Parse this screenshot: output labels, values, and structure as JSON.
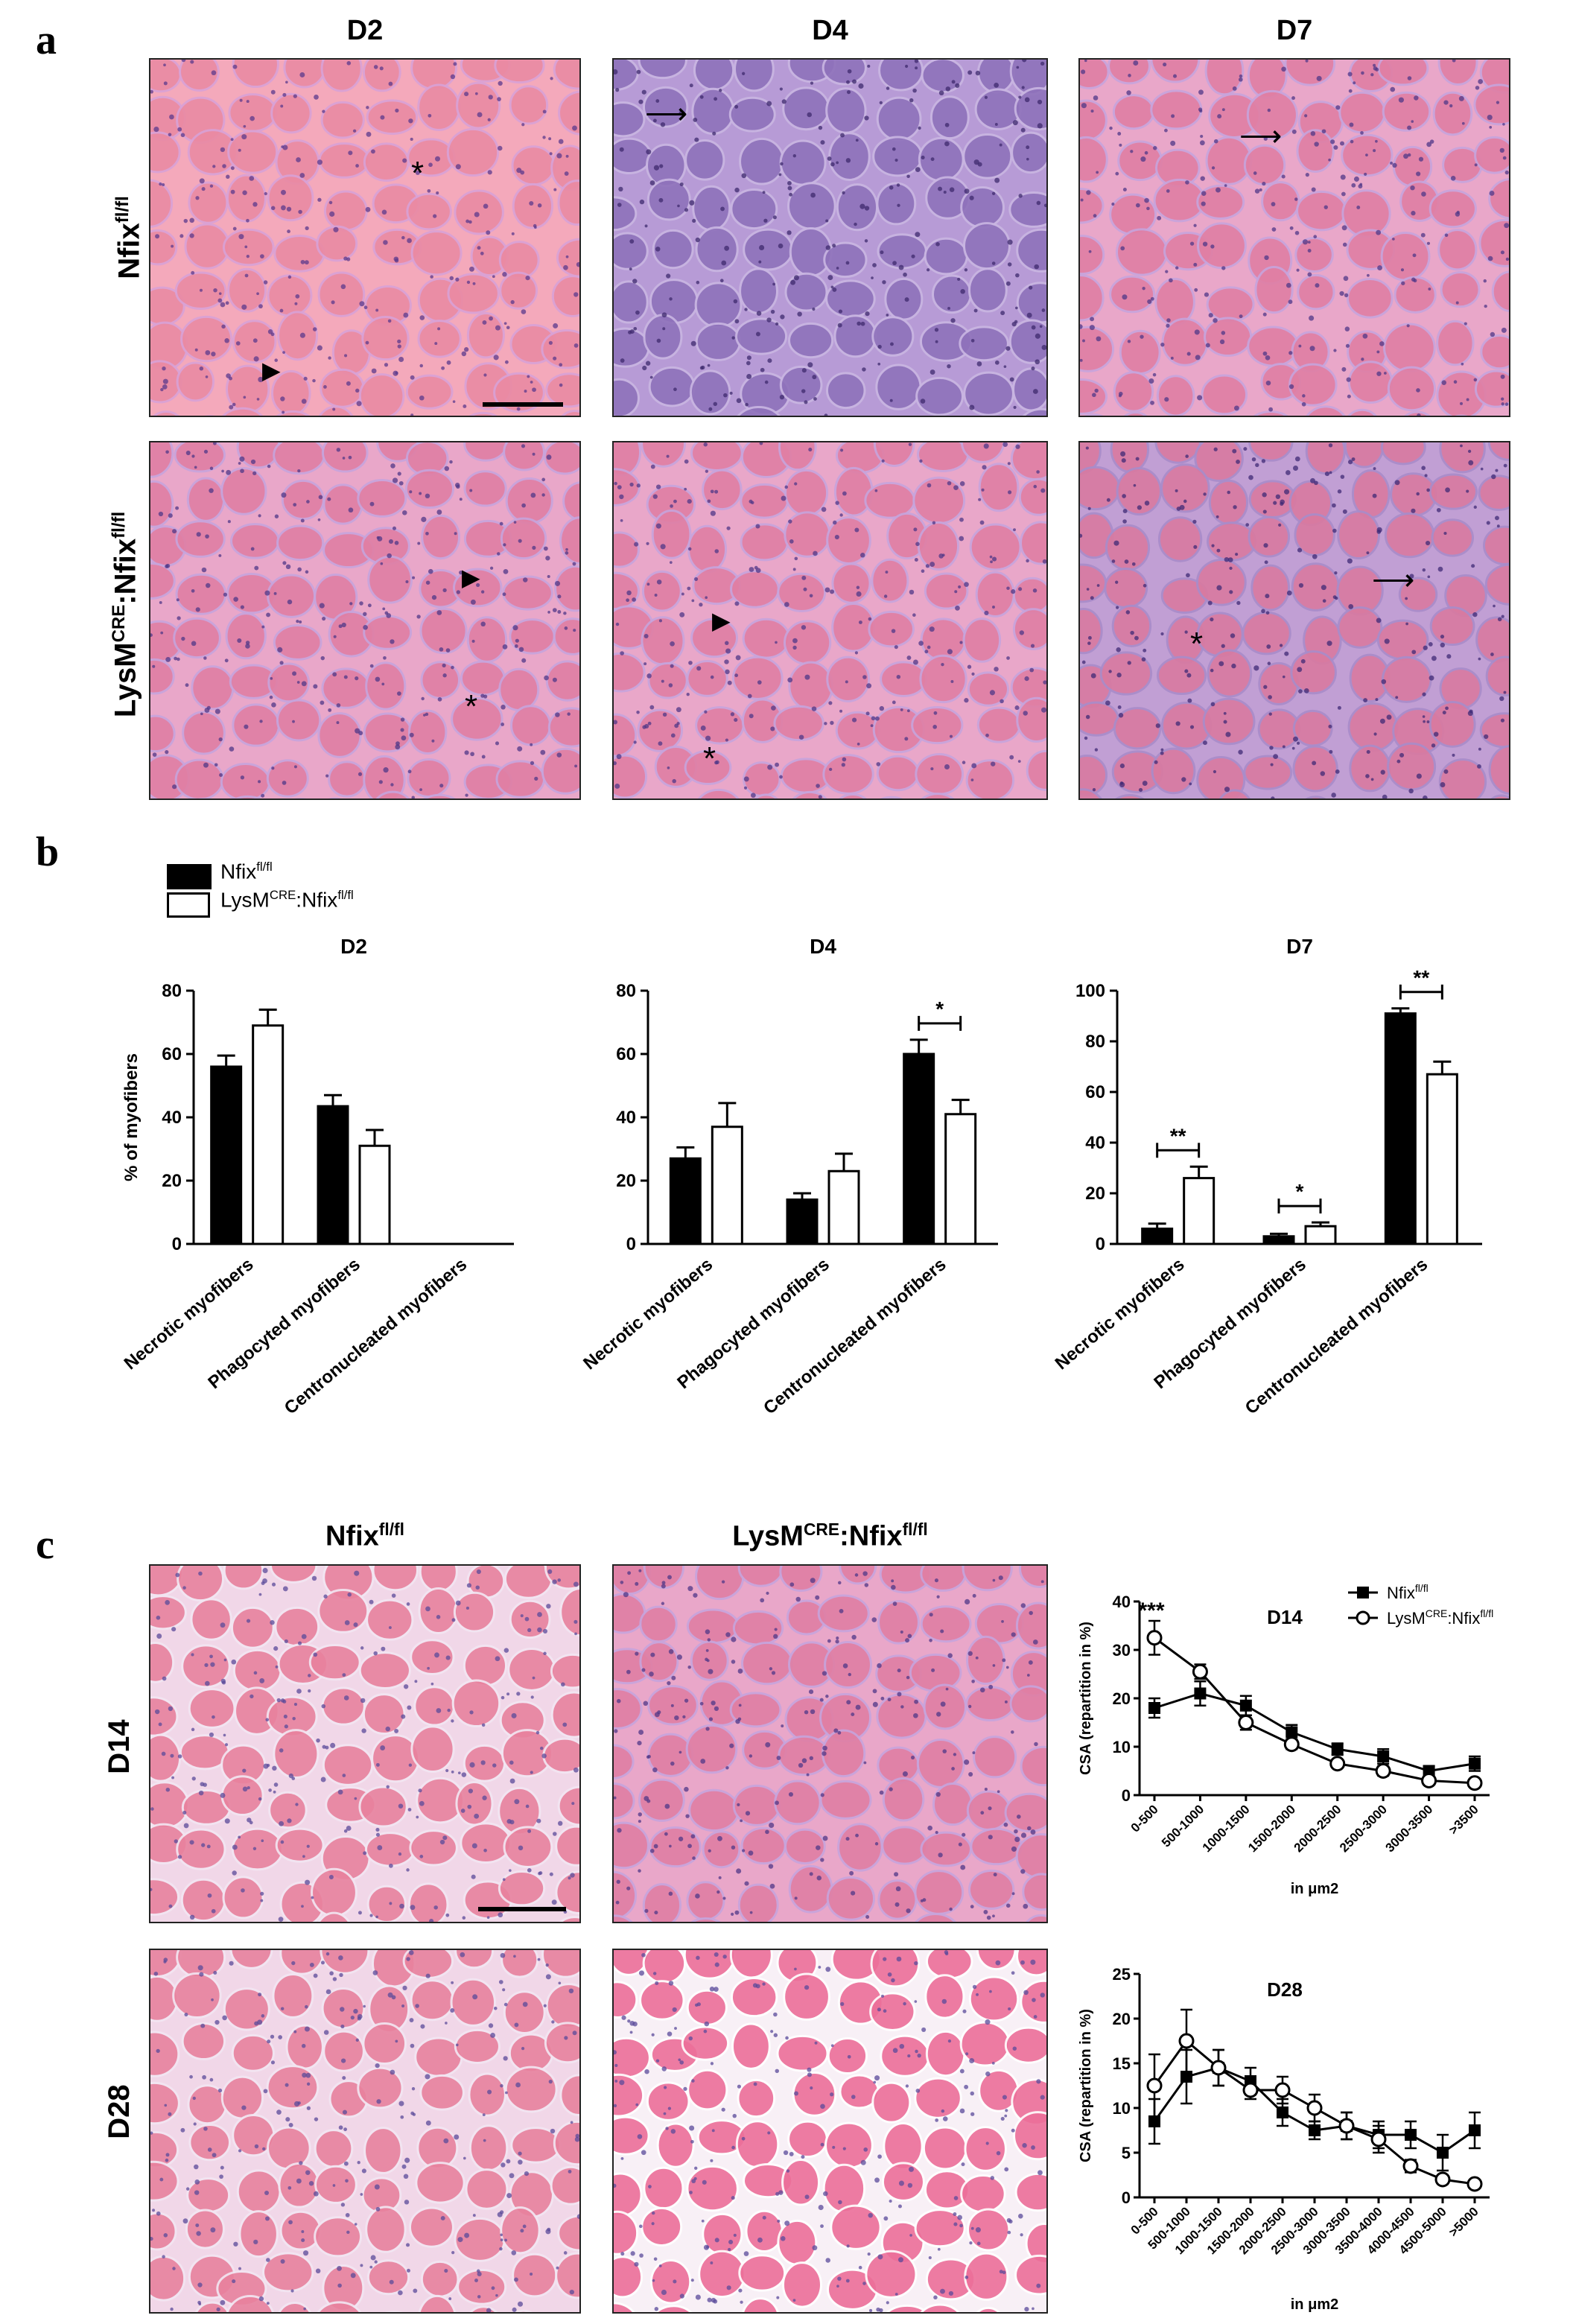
{
  "panel_labels": {
    "a": "a",
    "b": "b",
    "c": "c"
  },
  "panel_a": {
    "columns": [
      "D2",
      "D4",
      "D7"
    ],
    "rows": [
      {
        "base": "Nfix",
        "sup": "fl/fl",
        "prefix": "",
        "prefix_sup": ""
      },
      {
        "base": "Nfix",
        "sup": "fl/fl",
        "prefix": "LysM",
        "prefix_sup": "CRE"
      }
    ],
    "marks": {
      "asterisk": "*",
      "arrowhead": "▶",
      "arrow": "⟶"
    }
  },
  "panel_b": {
    "legend": [
      {
        "base": "Nfix",
        "sup": "fl/fl",
        "prefix": "",
        "prefix_sup": "",
        "fill": "#000000"
      },
      {
        "base": "Nfix",
        "sup": "fl/fl",
        "prefix": "LysM",
        "prefix_sup": "CRE",
        "fill": "#ffffff"
      }
    ],
    "ylabel": "% of myofibers"
  },
  "panel_c": {
    "col_headers": [
      {
        "base": "Nfix",
        "sup": "fl/fl",
        "prefix": "",
        "prefix_sup": ""
      },
      {
        "base": "Nfix",
        "sup": "fl/fl",
        "prefix": "LysM",
        "prefix_sup": "CRE"
      }
    ],
    "row_labels": [
      "D14",
      "D28"
    ]
  },
  "colors": {
    "he_pink": "#e8899f",
    "he_purple": "#8a6fb5",
    "black": "#000000"
  },
  "chart_data": [
    {
      "type": "bar",
      "title": "D2",
      "categories": [
        "Necrotic myofibers",
        "Phagocyted myofibers",
        "Centronucleated myofibers"
      ],
      "series": [
        {
          "name": "Nfixfl/fl",
          "values": [
            56,
            43.5,
            0
          ],
          "errors": [
            3.5,
            3.5,
            0
          ]
        },
        {
          "name": "LysMCRE:Nfixfl/fl",
          "values": [
            69,
            31,
            0
          ],
          "errors": [
            5,
            5,
            0
          ]
        }
      ],
      "ylabel": "% of myofibers",
      "ylim": [
        0,
        80
      ],
      "yticks": [
        0,
        20,
        40,
        60,
        80
      ],
      "significance": []
    },
    {
      "type": "bar",
      "title": "D4",
      "categories": [
        "Necrotic myofibers",
        "Phagocyted myofibers",
        "Centronucleated myofibers"
      ],
      "series": [
        {
          "name": "Nfixfl/fl",
          "values": [
            27,
            14,
            60
          ],
          "errors": [
            3.5,
            2,
            4.5
          ]
        },
        {
          "name": "LysMCRE:Nfixfl/fl",
          "values": [
            37,
            23,
            41
          ],
          "errors": [
            7.5,
            5.5,
            4.5
          ]
        }
      ],
      "ylabel": "",
      "ylim": [
        0,
        80
      ],
      "yticks": [
        0,
        20,
        40,
        60,
        80
      ],
      "significance": [
        {
          "category": 2,
          "label": "*"
        }
      ]
    },
    {
      "type": "bar",
      "title": "D7",
      "categories": [
        "Necrotic myofibers",
        "Phagocyted myofibers",
        "Centronucleated myofibers"
      ],
      "series": [
        {
          "name": "Nfixfl/fl",
          "values": [
            6,
            3,
            91
          ],
          "errors": [
            2,
            1,
            2
          ]
        },
        {
          "name": "LysMCRE:Nfixfl/fl",
          "values": [
            26,
            7,
            67
          ],
          "errors": [
            4.5,
            1.5,
            5
          ]
        }
      ],
      "ylabel": "",
      "ylim": [
        0,
        100
      ],
      "yticks": [
        0,
        20,
        40,
        60,
        80,
        100
      ],
      "significance": [
        {
          "category": 0,
          "label": "**"
        },
        {
          "category": 1,
          "label": "*"
        },
        {
          "category": 2,
          "label": "**"
        }
      ]
    },
    {
      "type": "line",
      "title": "D14",
      "categories": [
        "0-500",
        "500-1000",
        "1000-1500",
        "1500-2000",
        "2000-2500",
        "2500-3000",
        "3000-3500",
        ">3500"
      ],
      "series": [
        {
          "name": "Nfixfl/fl",
          "marker": "square-filled",
          "values": [
            18,
            21,
            18.5,
            13,
            9.5,
            8,
            5,
            6.5
          ],
          "errors": [
            2,
            2.5,
            2,
            1.5,
            1.2,
            1.5,
            1,
            1.5
          ]
        },
        {
          "name": "LysMCRE:Nfixfl/fl",
          "marker": "circle-open",
          "values": [
            32.5,
            25.5,
            15,
            10.5,
            6.5,
            5,
            3,
            2.5
          ],
          "errors": [
            3.5,
            1.5,
            1.5,
            1,
            0.8,
            1,
            0.5,
            0.5
          ]
        }
      ],
      "ylabel": "CSA (repartition in %)",
      "xlabel": "in μm2",
      "ylim": [
        0,
        40
      ],
      "yticks": [
        0,
        10,
        20,
        30,
        40
      ],
      "annotation": {
        "category": 0,
        "label": "***"
      }
    },
    {
      "type": "line",
      "title": "D28",
      "categories": [
        "0-500",
        "500-1000",
        "1000-1500",
        "1500-2000",
        "2000-2500",
        "2500-3000",
        "3000-3500",
        "3500-4000",
        "4000-4500",
        "4500-5000",
        ">5000"
      ],
      "series": [
        {
          "name": "Nfixfl/fl",
          "marker": "square-filled",
          "values": [
            8.5,
            13.5,
            14.5,
            13,
            9.5,
            7.5,
            8,
            7,
            7,
            5,
            7.5
          ],
          "errors": [
            2.5,
            3,
            2,
            1.5,
            1.5,
            1,
            1.5,
            1.5,
            1.5,
            2,
            2
          ]
        },
        {
          "name": "LysMCRE:Nfixfl/fl",
          "marker": "circle-open",
          "values": [
            12.5,
            17.5,
            14.5,
            12,
            12,
            10,
            8,
            6.5,
            3.5,
            2,
            1.5
          ],
          "errors": [
            3.5,
            3.5,
            2,
            1,
            1.5,
            1.5,
            1.5,
            1.5,
            0.7,
            0.5,
            0.3
          ]
        }
      ],
      "ylabel": "CSA (repartition in %)",
      "xlabel": "in μm2",
      "ylim": [
        0,
        25
      ],
      "yticks": [
        0,
        5,
        10,
        15,
        20,
        25
      ]
    }
  ]
}
